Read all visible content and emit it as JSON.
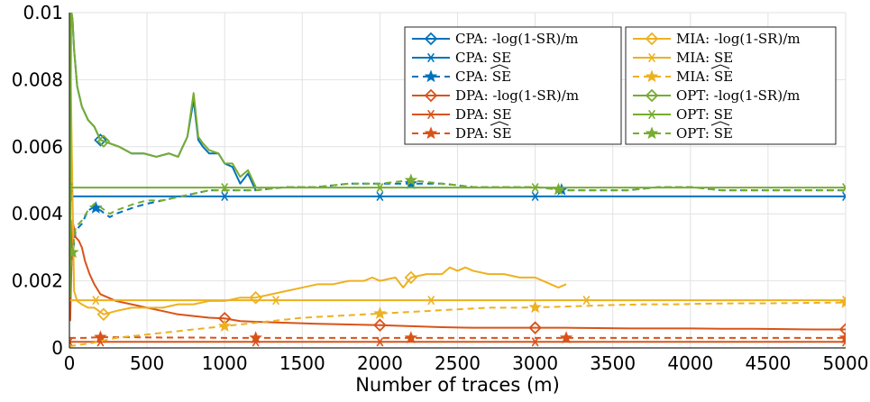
{
  "chart_data": {
    "type": "line",
    "title": "",
    "xlabel": "Number of traces (m)",
    "ylabel": "",
    "xlim": [
      0,
      5000
    ],
    "ylim": [
      0,
      0.01
    ],
    "xticks": [
      0,
      500,
      1000,
      1500,
      2000,
      2500,
      3000,
      3500,
      4000,
      4500,
      5000
    ],
    "yticks": [
      0,
      0.002,
      0.004,
      0.006,
      0.008,
      0.01
    ],
    "xtick_labels": [
      "0",
      "500",
      "1000",
      "1500",
      "2000",
      "2500",
      "3000",
      "3500",
      "4000",
      "4500",
      "5000"
    ],
    "ytick_labels": [
      "0",
      "0.002",
      "0.004",
      "0.006",
      "0.008",
      "0.01"
    ],
    "grid": true,
    "legend": {
      "placement": "top-right",
      "columns": [
        [
          "CPA: -log(1-SR)/m",
          "CPA: SE",
          "CPA: SE-hat",
          "DPA: -log(1-SR)/m",
          "DPA: SE",
          "DPA: SE-hat"
        ],
        [
          "MIA: -log(1-SR)/m",
          "MIA: SE",
          "MIA: SE-hat",
          "OPT: -log(1-SR)/m",
          "OPT: SE",
          "OPT: SE-hat"
        ]
      ]
    },
    "colors": {
      "CPA": "#0072BD",
      "DPA": "#D95319",
      "MIA": "#EDB120",
      "OPT": "#77AC30"
    },
    "series": [
      {
        "name": "CPA: -log(1-SR)/m",
        "color": "#0072BD",
        "style": "solid",
        "marker": "diamond",
        "x": [
          5,
          10,
          20,
          30,
          50,
          80,
          120,
          160,
          200,
          260,
          320,
          400,
          480,
          560,
          640,
          700,
          760,
          800,
          830,
          860,
          900,
          960,
          1000,
          1050,
          1100,
          1150,
          1200
        ],
        "y": [
          0.0015,
          0.0101,
          0.0098,
          0.0089,
          0.0078,
          0.0072,
          0.0068,
          0.0066,
          0.0062,
          0.0061,
          0.006,
          0.0058,
          0.0058,
          0.0057,
          0.0058,
          0.0057,
          0.0063,
          0.0074,
          0.0062,
          0.006,
          0.0058,
          0.0058,
          0.0055,
          0.0054,
          0.0049,
          0.0052,
          0.0047
        ]
      },
      {
        "name": "CPA: SE",
        "color": "#0072BD",
        "style": "solid",
        "marker": "asterisk",
        "x": [
          0,
          5000
        ],
        "y": [
          0.00452,
          0.00452
        ]
      },
      {
        "name": "CPA: SE-hat",
        "color": "#0072BD",
        "style": "dashed",
        "marker": "star",
        "x": [
          0,
          40,
          80,
          120,
          160,
          200,
          260,
          300,
          360,
          420,
          500,
          600,
          700,
          800,
          900,
          1000,
          1200,
          1400,
          1600,
          1800,
          2000,
          2200,
          2400,
          2600,
          2800,
          3000,
          3200,
          3400,
          3600,
          3800,
          4000,
          4200,
          4400,
          4600,
          4800,
          5000
        ],
        "y": [
          0.002,
          0.0035,
          0.0037,
          0.0041,
          0.0042,
          0.0041,
          0.0039,
          0.004,
          0.0041,
          0.0042,
          0.0043,
          0.0044,
          0.0045,
          0.0046,
          0.0047,
          0.0047,
          0.0047,
          0.0048,
          0.0048,
          0.0049,
          0.0049,
          0.0049,
          0.0049,
          0.0048,
          0.0048,
          0.0048,
          0.0047,
          0.0047,
          0.0047,
          0.0048,
          0.0048,
          0.0047,
          0.0047,
          0.0047,
          0.0047,
          0.0047
        ]
      },
      {
        "name": "DPA: -log(1-SR)/m",
        "color": "#D95319",
        "style": "solid",
        "marker": "diamond",
        "x": [
          5,
          20,
          40,
          60,
          80,
          100,
          130,
          160,
          200,
          250,
          300,
          400,
          500,
          600,
          700,
          800,
          900,
          1000,
          1100,
          1200,
          1400,
          1600,
          1800,
          2000,
          2200,
          2400,
          2600,
          2800,
          3000,
          3200,
          3400,
          3600,
          3800,
          4000,
          4200,
          4400,
          4600,
          4800,
          5000
        ],
        "y": [
          0.0008,
          0.0038,
          0.0033,
          0.0032,
          0.003,
          0.0026,
          0.0022,
          0.0019,
          0.0016,
          0.0015,
          0.0014,
          0.0013,
          0.0012,
          0.0011,
          0.001,
          0.00095,
          0.0009,
          0.00088,
          0.0008,
          0.00078,
          0.00075,
          0.00072,
          0.0007,
          0.00068,
          0.00065,
          0.00062,
          0.0006,
          0.0006,
          0.0006,
          0.0006,
          0.00059,
          0.00058,
          0.00058,
          0.00058,
          0.00057,
          0.00057,
          0.00056,
          0.00055,
          0.00055
        ]
      },
      {
        "name": "DPA: SE",
        "color": "#D95319",
        "style": "solid",
        "marker": "asterisk",
        "x": [
          0,
          5000
        ],
        "y": [
          0.00018,
          0.00018
        ]
      },
      {
        "name": "DPA: SE-hat",
        "color": "#D95319",
        "style": "dashed",
        "marker": "star",
        "x": [
          0,
          100,
          200,
          400,
          600,
          800,
          1000,
          1400,
          1800,
          2200,
          2600,
          3000,
          3400,
          3800,
          4200,
          4600,
          5000
        ],
        "y": [
          0.0003,
          0.0003,
          0.00032,
          0.00032,
          0.00031,
          0.00031,
          0.0003,
          0.0003,
          0.0003,
          0.0003,
          0.0003,
          0.0003,
          0.0003,
          0.0003,
          0.0003,
          0.0003,
          0.0003
        ]
      },
      {
        "name": "MIA: -log(1-SR)/m",
        "color": "#EDB120",
        "style": "solid",
        "marker": "diamond",
        "x": [
          2,
          15,
          30,
          50,
          80,
          120,
          160,
          220,
          300,
          400,
          500,
          600,
          700,
          800,
          900,
          1000,
          1100,
          1200,
          1300,
          1400,
          1500,
          1600,
          1700,
          1800,
          1900,
          1950,
          2000,
          2100,
          2150,
          2200,
          2300,
          2400,
          2450,
          2500,
          2550,
          2600,
          2700,
          2800,
          2900,
          3000,
          3050,
          3100,
          3150,
          3200
        ],
        "y": [
          0.0101,
          0.006,
          0.0017,
          0.0014,
          0.0013,
          0.0012,
          0.0012,
          0.001,
          0.0011,
          0.0012,
          0.0012,
          0.0012,
          0.0013,
          0.0013,
          0.0014,
          0.0014,
          0.0015,
          0.0015,
          0.0016,
          0.0017,
          0.0018,
          0.0019,
          0.0019,
          0.002,
          0.002,
          0.0021,
          0.002,
          0.0021,
          0.0018,
          0.0021,
          0.0022,
          0.0022,
          0.0024,
          0.0023,
          0.0024,
          0.0023,
          0.0022,
          0.0022,
          0.0021,
          0.0021,
          0.002,
          0.0019,
          0.0018,
          0.0019
        ]
      },
      {
        "name": "MIA: SE",
        "color": "#EDB120",
        "style": "solid",
        "marker": "asterisk",
        "x": [
          0,
          5000
        ],
        "y": [
          0.00142,
          0.00142
        ]
      },
      {
        "name": "MIA: SE-hat",
        "color": "#EDB120",
        "style": "dashed",
        "marker": "star",
        "x": [
          0,
          150,
          300,
          500,
          700,
          900,
          1100,
          1300,
          1500,
          1700,
          1900,
          2100,
          2300,
          2500,
          2700,
          2900,
          3100,
          3300,
          3500,
          3700,
          3900,
          4100,
          4300,
          4500,
          4700,
          4900,
          5000
        ],
        "y": [
          5e-05,
          0.00015,
          0.0003,
          0.0004,
          0.0005,
          0.0006,
          0.0007,
          0.0008,
          0.0009,
          0.00095,
          0.001,
          0.00105,
          0.0011,
          0.00115,
          0.0012,
          0.0012,
          0.00122,
          0.00125,
          0.00128,
          0.0013,
          0.0013,
          0.00132,
          0.00133,
          0.00133,
          0.00134,
          0.00135,
          0.00135
        ]
      },
      {
        "name": "OPT: -log(1-SR)/m",
        "color": "#77AC30",
        "style": "solid",
        "marker": "diamond",
        "x": [
          5,
          10,
          20,
          30,
          50,
          80,
          120,
          160,
          200,
          260,
          320,
          400,
          480,
          560,
          640,
          700,
          760,
          800,
          830,
          860,
          900,
          960,
          1000,
          1050,
          1100,
          1150,
          1200
        ],
        "y": [
          0.0015,
          0.0101,
          0.0098,
          0.0089,
          0.0078,
          0.0072,
          0.0068,
          0.0066,
          0.0062,
          0.0061,
          0.006,
          0.0058,
          0.0058,
          0.0057,
          0.0058,
          0.0057,
          0.0063,
          0.0076,
          0.0063,
          0.0061,
          0.0059,
          0.0058,
          0.0055,
          0.0055,
          0.0051,
          0.0053,
          0.0048
        ]
      },
      {
        "name": "OPT: SE",
        "color": "#77AC30",
        "style": "solid",
        "marker": "asterisk",
        "x": [
          0,
          5000
        ],
        "y": [
          0.00478,
          0.00478
        ]
      },
      {
        "name": "OPT: SE-hat",
        "color": "#77AC30",
        "style": "dashed",
        "marker": "star",
        "x": [
          0,
          40,
          80,
          120,
          160,
          200,
          260,
          300,
          360,
          420,
          500,
          600,
          700,
          800,
          900,
          1000,
          1200,
          1400,
          1600,
          1800,
          2000,
          2200,
          2400,
          2600,
          2800,
          3000,
          3200,
          3400,
          3600,
          3800,
          4000,
          4200,
          4400,
          4600,
          4800,
          5000
        ],
        "y": [
          0.0021,
          0.0036,
          0.0038,
          0.0041,
          0.0043,
          0.0042,
          0.004,
          0.0041,
          0.0042,
          0.0043,
          0.0044,
          0.0044,
          0.0045,
          0.0046,
          0.0047,
          0.0047,
          0.0047,
          0.0048,
          0.0048,
          0.0049,
          0.0049,
          0.005,
          0.0049,
          0.0048,
          0.0048,
          0.0048,
          0.0047,
          0.0047,
          0.0047,
          0.0048,
          0.0048,
          0.0047,
          0.0047,
          0.0047,
          0.0047,
          0.0047
        ]
      }
    ]
  }
}
